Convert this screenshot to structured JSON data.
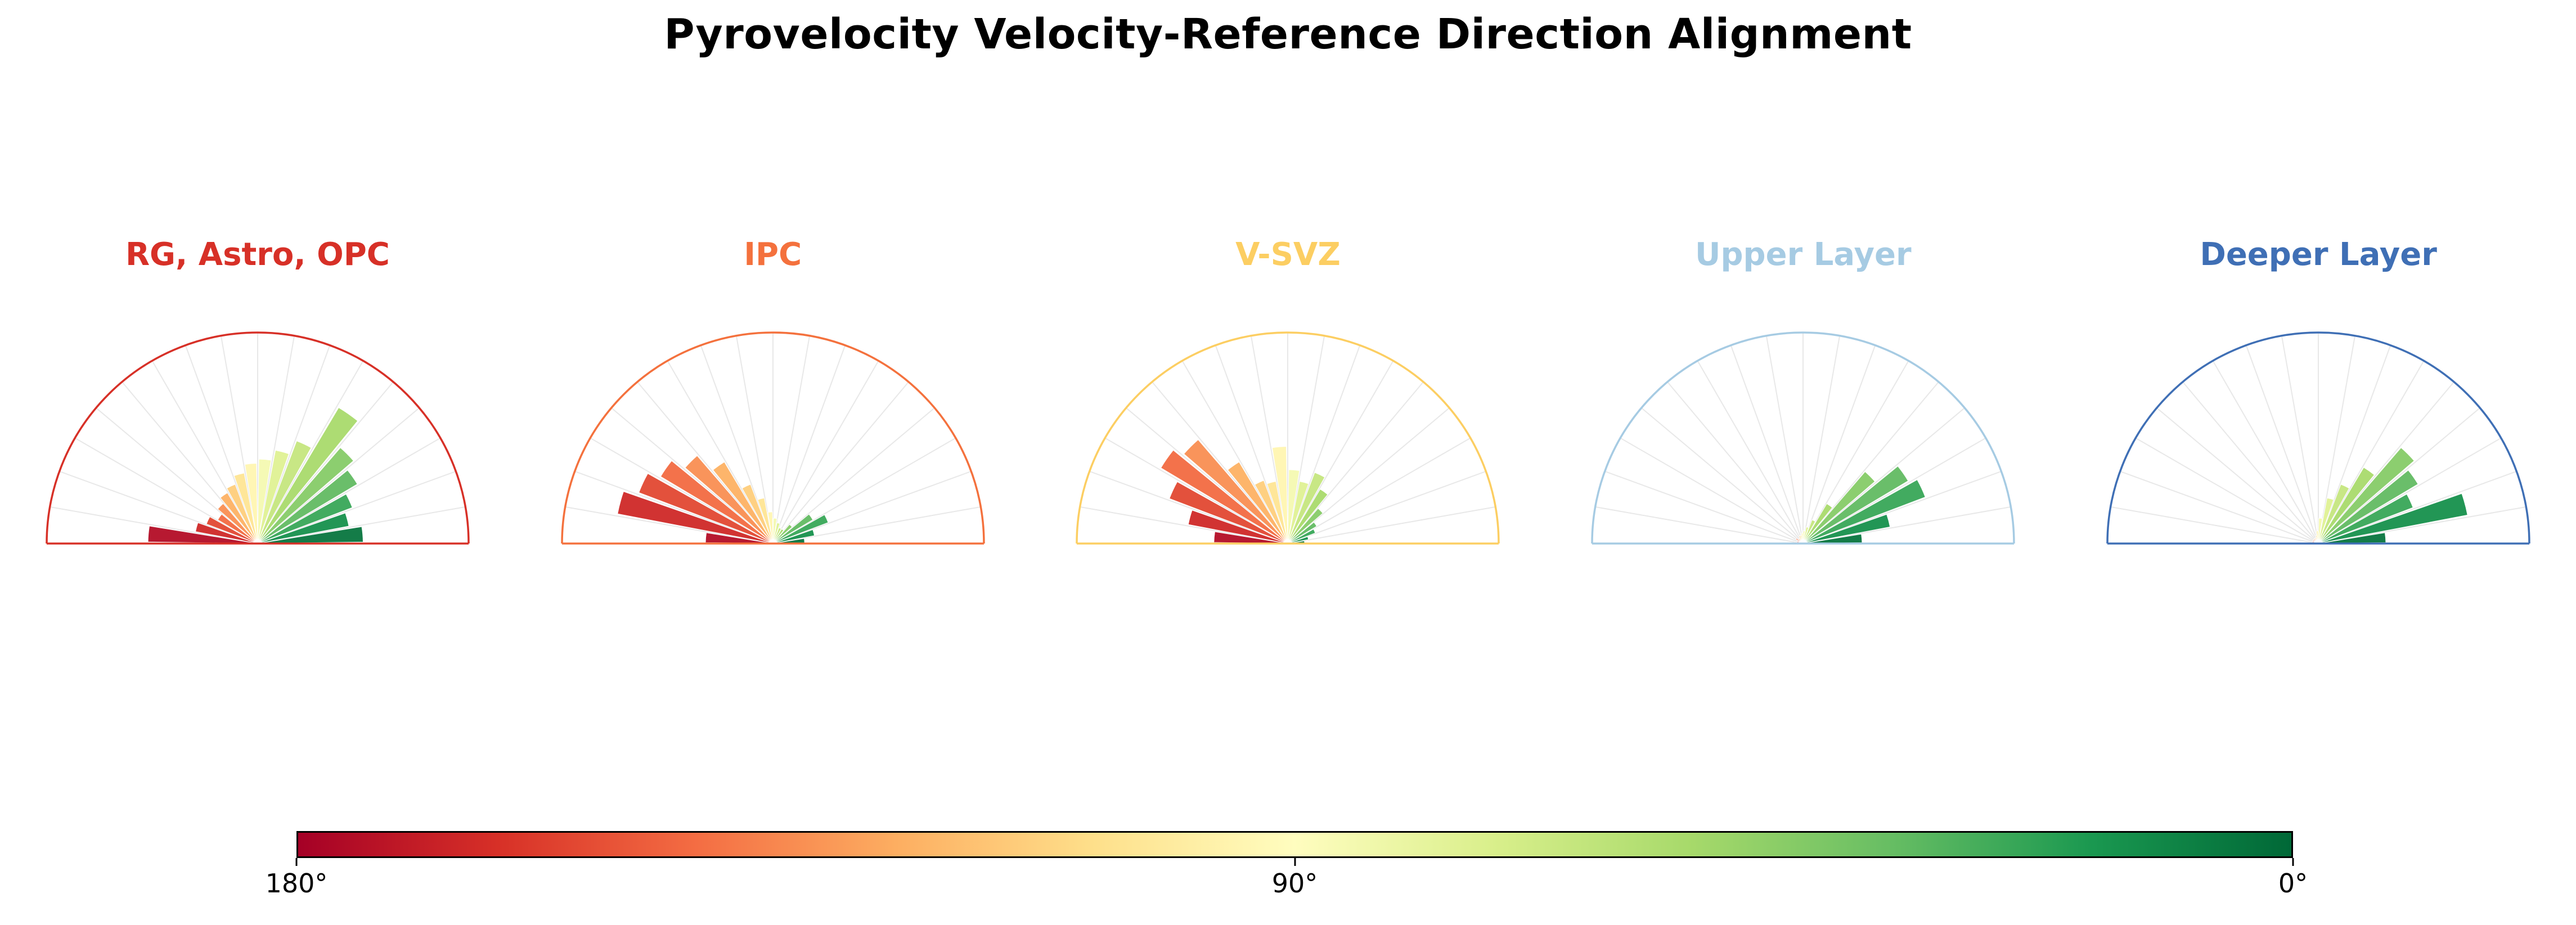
{
  "title": "Pyrovelocity Velocity-Reference Direction Alignment",
  "colorbar": {
    "ticks": [
      {
        "label": "180°",
        "pos": 0
      },
      {
        "label": "90°",
        "pos": 0.5
      },
      {
        "label": "0°",
        "pos": 1
      }
    ]
  },
  "chart_data": {
    "type": "bar",
    "subtype": "polar-rose-histogram-semicircle",
    "title": "Pyrovelocity Velocity-Reference Direction Alignment",
    "angle_axis": {
      "unit": "degrees",
      "min": 0,
      "max": 180,
      "bin_width_deg": 10,
      "zero_at": "right",
      "orientation": "upper-half"
    },
    "bin_centers_deg": [
      5,
      15,
      25,
      35,
      45,
      55,
      65,
      75,
      85,
      95,
      105,
      115,
      125,
      135,
      145,
      155,
      165,
      175
    ],
    "values_unit": "normalized radius (0-1 of outer arc), bin order 0-10° ... 170-180°",
    "panels": [
      {
        "label": "RG, Astro, OPC",
        "outline_color": "#d73027",
        "values": [
          0.5,
          0.44,
          0.48,
          0.55,
          0.6,
          0.75,
          0.52,
          0.45,
          0.4,
          0.38,
          0.34,
          0.3,
          0.28,
          0.25,
          0.22,
          0.26,
          0.3,
          0.52
        ]
      },
      {
        "label": "IPC",
        "outline_color": "#f4713d",
        "values": [
          0.15,
          0.2,
          0.28,
          0.22,
          0.12,
          0.08,
          0.08,
          0.1,
          0.12,
          0.15,
          0.22,
          0.3,
          0.45,
          0.55,
          0.62,
          0.68,
          0.75,
          0.32
        ]
      },
      {
        "label": "V-SVZ",
        "outline_color": "#fcce62",
        "values": [
          0.08,
          0.1,
          0.14,
          0.16,
          0.22,
          0.3,
          0.36,
          0.3,
          0.35,
          0.46,
          0.3,
          0.32,
          0.45,
          0.65,
          0.7,
          0.6,
          0.48,
          0.35
        ]
      },
      {
        "label": "Upper Layer",
        "outline_color": "#a6cbe3",
        "values": [
          0.28,
          0.42,
          0.62,
          0.58,
          0.45,
          0.22,
          0.12,
          0.08,
          0.06,
          0.05,
          0.04,
          0.04,
          0.03,
          0.03,
          0.04,
          0.03,
          0.03,
          0.04
        ]
      },
      {
        "label": "Deeper Layer",
        "outline_color": "#3f6fb5",
        "values": [
          0.32,
          0.72,
          0.48,
          0.55,
          0.6,
          0.42,
          0.3,
          0.22,
          0.12,
          0.06,
          0.04,
          0.03,
          0.03,
          0.03,
          0.03,
          0.03,
          0.03,
          0.03
        ]
      }
    ],
    "colormap": {
      "name": "RdYlGn (0° = green, 90° = pale yellow, 180° = red)",
      "stops": [
        [
          0.0,
          "#a50026"
        ],
        [
          0.1,
          "#d73027"
        ],
        [
          0.2,
          "#f46d43"
        ],
        [
          0.3,
          "#fdae61"
        ],
        [
          0.4,
          "#fee08b"
        ],
        [
          0.5,
          "#fffdbf"
        ],
        [
          0.6,
          "#d9ef8b"
        ],
        [
          0.7,
          "#a6d96a"
        ],
        [
          0.8,
          "#66bd63"
        ],
        [
          0.9,
          "#1a9850"
        ],
        [
          1.0,
          "#006837"
        ]
      ]
    },
    "grid": {
      "spokes_every_deg": 10,
      "spoke_color": "#e8e8e8"
    },
    "legend_position": "none"
  }
}
